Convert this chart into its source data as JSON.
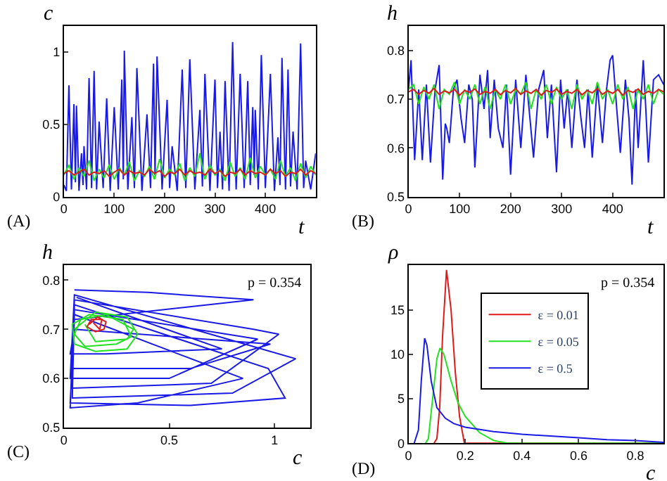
{
  "chart_data": [
    {
      "type": "line",
      "xlabel": "t",
      "ylabel": "c",
      "annotations": [
        "(A)"
      ],
      "xlim": [
        0,
        500
      ],
      "ylim": [
        0,
        1.18
      ],
      "xticks": [
        0,
        100,
        200,
        300,
        400
      ],
      "yticks": [
        0,
        0.5,
        1
      ],
      "grid": false,
      "legend": false,
      "series": [
        {
          "color": "#1a1ae6",
          "x": [
            0,
            5,
            10,
            15,
            20,
            23,
            25,
            30,
            35,
            38,
            40,
            45,
            50,
            55,
            60,
            65,
            70,
            78,
            85,
            92,
            100,
            108,
            115,
            118,
            120,
            127,
            135,
            140,
            145,
            155,
            165,
            172,
            178,
            181,
            185,
            195,
            205,
            210,
            215,
            225,
            235,
            242,
            250,
            260,
            270,
            275,
            280,
            290,
            300,
            305,
            310,
            315,
            320,
            328,
            335,
            342,
            350,
            358,
            365,
            370,
            375,
            378,
            380,
            386,
            392,
            400,
            410,
            418,
            425,
            429,
            433,
            440,
            445,
            450,
            455,
            463,
            470,
            476,
            480,
            490,
            500
          ],
          "values": [
            0.08,
            0.04,
            0.77,
            0.05,
            0.64,
            0.1,
            0.63,
            0.04,
            0.3,
            0.08,
            0.35,
            0.05,
            0.82,
            0.06,
            0.87,
            0.05,
            0.52,
            0.06,
            0.68,
            0.04,
            0.62,
            0.05,
            0.81,
            0.12,
            1.01,
            0.05,
            0.55,
            0.06,
            0.89,
            0.04,
            0.57,
            0.06,
            0.92,
            0.15,
            0.97,
            0.05,
            0.67,
            0.06,
            0.35,
            0.04,
            0.88,
            0.06,
            0.95,
            0.05,
            0.6,
            0.07,
            0.85,
            0.04,
            0.81,
            0.06,
            0.45,
            0.05,
            0.8,
            0.04,
            1.07,
            0.05,
            0.85,
            0.06,
            0.8,
            0.08,
            0.62,
            0.15,
            0.6,
            0.05,
            0.98,
            0.06,
            0.85,
            0.04,
            0.41,
            0.08,
            0.96,
            0.05,
            0.88,
            0.07,
            0.45,
            0.05,
            1.06,
            0.06,
            0.25,
            0.05,
            0.3
          ]
        },
        {
          "color": "#22e022",
          "x": [
            0,
            10,
            20,
            30,
            40,
            50,
            60,
            70,
            80,
            90,
            100,
            110,
            120,
            130,
            140,
            150,
            160,
            170,
            180,
            190,
            200,
            210,
            220,
            230,
            240,
            250,
            260,
            270,
            280,
            290,
            300,
            310,
            320,
            330,
            340,
            350,
            360,
            370,
            380,
            390,
            400,
            410,
            420,
            430,
            440,
            450,
            460,
            470,
            480,
            490,
            500
          ],
          "values": [
            0.15,
            0.22,
            0.12,
            0.2,
            0.14,
            0.25,
            0.11,
            0.19,
            0.13,
            0.22,
            0.12,
            0.2,
            0.15,
            0.24,
            0.11,
            0.18,
            0.14,
            0.21,
            0.12,
            0.26,
            0.13,
            0.19,
            0.15,
            0.23,
            0.11,
            0.2,
            0.14,
            0.3,
            0.12,
            0.22,
            0.15,
            0.19,
            0.11,
            0.24,
            0.14,
            0.2,
            0.12,
            0.27,
            0.13,
            0.21,
            0.15,
            0.19,
            0.12,
            0.25,
            0.14,
            0.2,
            0.11,
            0.23,
            0.13,
            0.21,
            0.15
          ]
        },
        {
          "color": "#e01a1a",
          "x": [
            0,
            10,
            20,
            30,
            40,
            50,
            60,
            70,
            80,
            90,
            100,
            110,
            120,
            130,
            140,
            150,
            160,
            170,
            180,
            190,
            200,
            210,
            220,
            230,
            240,
            250,
            260,
            270,
            280,
            290,
            300,
            310,
            320,
            330,
            340,
            350,
            360,
            370,
            380,
            390,
            400,
            410,
            420,
            430,
            440,
            450,
            460,
            470,
            480,
            490,
            500
          ],
          "values": [
            0.16,
            0.18,
            0.15,
            0.17,
            0.19,
            0.15,
            0.17,
            0.16,
            0.18,
            0.14,
            0.17,
            0.19,
            0.15,
            0.18,
            0.16,
            0.17,
            0.15,
            0.19,
            0.16,
            0.18,
            0.14,
            0.17,
            0.16,
            0.19,
            0.15,
            0.18,
            0.16,
            0.17,
            0.15,
            0.19,
            0.16,
            0.18,
            0.14,
            0.17,
            0.16,
            0.19,
            0.15,
            0.18,
            0.16,
            0.17,
            0.15,
            0.19,
            0.16,
            0.18,
            0.14,
            0.17,
            0.16,
            0.19,
            0.15,
            0.18,
            0.16
          ]
        }
      ]
    },
    {
      "type": "line",
      "xlabel": "t",
      "ylabel": "h",
      "annotations": [
        "(B)"
      ],
      "xlim": [
        0,
        500
      ],
      "ylim": [
        0.5,
        0.85
      ],
      "xticks": [
        0,
        100,
        200,
        300,
        400
      ],
      "yticks": [
        0.5,
        0.6,
        0.7,
        0.8
      ],
      "grid": false,
      "legend": false,
      "series": [
        {
          "color": "#1a1ae6",
          "x": [
            0,
            5,
            12,
            20,
            27,
            35,
            43,
            52,
            60,
            67,
            72,
            75,
            80,
            88,
            95,
            103,
            110,
            118,
            125,
            130,
            140,
            148,
            155,
            160,
            168,
            176,
            185,
            192,
            200,
            210,
            220,
            230,
            238,
            245,
            255,
            265,
            272,
            280,
            290,
            298,
            305,
            312,
            320,
            330,
            338,
            345,
            352,
            360,
            370,
            380,
            388,
            395,
            400,
            408,
            415,
            425,
            432,
            438,
            445,
            450,
            460,
            465,
            470,
            480,
            490,
            500
          ],
          "values": [
            0.72,
            0.78,
            0.575,
            0.72,
            0.575,
            0.73,
            0.57,
            0.72,
            0.77,
            0.535,
            0.65,
            0.64,
            0.61,
            0.72,
            0.74,
            0.66,
            0.61,
            0.73,
            0.7,
            0.56,
            0.75,
            0.68,
            0.76,
            0.62,
            0.74,
            0.64,
            0.6,
            0.73,
            0.545,
            0.74,
            0.6,
            0.75,
            0.66,
            0.58,
            0.72,
            0.76,
            0.62,
            0.73,
            0.55,
            0.74,
            0.64,
            0.72,
            0.6,
            0.74,
            0.66,
            0.6,
            0.72,
            0.58,
            0.73,
            0.61,
            0.72,
            0.78,
            0.79,
            0.68,
            0.59,
            0.74,
            0.66,
            0.525,
            0.72,
            0.6,
            0.78,
            0.68,
            0.57,
            0.74,
            0.75,
            0.73
          ]
        },
        {
          "color": "#22e022",
          "x": [
            0,
            10,
            20,
            30,
            40,
            50,
            60,
            70,
            80,
            90,
            100,
            110,
            120,
            130,
            140,
            150,
            160,
            170,
            180,
            190,
            200,
            210,
            220,
            230,
            240,
            250,
            260,
            270,
            280,
            290,
            300,
            310,
            320,
            330,
            340,
            350,
            360,
            370,
            380,
            390,
            400,
            410,
            420,
            430,
            440,
            450,
            460,
            470,
            480,
            490,
            500
          ],
          "values": [
            0.72,
            0.73,
            0.69,
            0.725,
            0.7,
            0.73,
            0.68,
            0.72,
            0.71,
            0.735,
            0.69,
            0.72,
            0.7,
            0.73,
            0.69,
            0.725,
            0.68,
            0.72,
            0.7,
            0.73,
            0.69,
            0.72,
            0.71,
            0.735,
            0.68,
            0.72,
            0.7,
            0.73,
            0.69,
            0.725,
            0.7,
            0.72,
            0.68,
            0.73,
            0.7,
            0.72,
            0.69,
            0.735,
            0.7,
            0.72,
            0.69,
            0.73,
            0.7,
            0.725,
            0.68,
            0.72,
            0.7,
            0.73,
            0.69,
            0.72,
            0.71
          ]
        },
        {
          "color": "#e01a1a",
          "x": [
            0,
            10,
            20,
            30,
            40,
            50,
            60,
            70,
            80,
            90,
            100,
            110,
            120,
            130,
            140,
            150,
            160,
            170,
            180,
            190,
            200,
            210,
            220,
            230,
            240,
            250,
            260,
            270,
            280,
            290,
            300,
            310,
            320,
            330,
            340,
            350,
            360,
            370,
            380,
            390,
            400,
            410,
            420,
            430,
            440,
            450,
            460,
            470,
            480,
            490,
            500
          ],
          "values": [
            0.715,
            0.72,
            0.71,
            0.718,
            0.712,
            0.722,
            0.71,
            0.717,
            0.713,
            0.72,
            0.708,
            0.718,
            0.714,
            0.721,
            0.71,
            0.716,
            0.712,
            0.72,
            0.709,
            0.718,
            0.713,
            0.722,
            0.71,
            0.717,
            0.712,
            0.72,
            0.708,
            0.718,
            0.714,
            0.721,
            0.71,
            0.716,
            0.712,
            0.72,
            0.709,
            0.718,
            0.713,
            0.722,
            0.71,
            0.717,
            0.712,
            0.72,
            0.708,
            0.718,
            0.714,
            0.721,
            0.71,
            0.716,
            0.712,
            0.72,
            0.715
          ]
        }
      ]
    },
    {
      "type": "line",
      "xlabel": "c",
      "ylabel": "h",
      "annotations": [
        "(C)",
        "p = 0.354"
      ],
      "xlim": [
        0,
        1.17
      ],
      "ylim": [
        0.5,
        0.83
      ],
      "xticks": [
        0,
        0.5,
        1
      ],
      "yticks": [
        0.5,
        0.6,
        0.7,
        0.8
      ],
      "grid": false,
      "legend": false,
      "series": [
        {
          "color": "#1a1ae6",
          "x": [
            0.05,
            0.4,
            0.9,
            0.05,
            0.03,
            0.6,
            1.05,
            0.97,
            0.05,
            0.04,
            0.8,
            1.1,
            0.05,
            0.03,
            0.5,
            0.92,
            0.05,
            0.04,
            0.7,
            1.02,
            0.9,
            0.05,
            0.03,
            0.35,
            0.85,
            0.05,
            0.04,
            0.6,
            0.98,
            0.05,
            0.03,
            0.2,
            0.75,
            0.06
          ],
          "values": [
            0.78,
            0.775,
            0.76,
            0.72,
            0.55,
            0.545,
            0.56,
            0.62,
            0.75,
            0.56,
            0.57,
            0.64,
            0.77,
            0.6,
            0.6,
            0.68,
            0.74,
            0.58,
            0.59,
            0.69,
            0.7,
            0.76,
            0.54,
            0.55,
            0.6,
            0.73,
            0.62,
            0.62,
            0.67,
            0.7,
            0.65,
            0.65,
            0.66,
            0.765
          ]
        },
        {
          "color": "#22e022",
          "x": [
            0.05,
            0.15,
            0.3,
            0.35,
            0.3,
            0.15,
            0.05,
            0.04,
            0.12,
            0.28,
            0.32,
            0.25,
            0.1,
            0.05,
            0.08,
            0.2,
            0.33,
            0.3,
            0.15,
            0.1
          ],
          "values": [
            0.7,
            0.735,
            0.725,
            0.69,
            0.66,
            0.655,
            0.67,
            0.71,
            0.73,
            0.72,
            0.685,
            0.67,
            0.665,
            0.69,
            0.72,
            0.73,
            0.7,
            0.68,
            0.675,
            0.71
          ]
        },
        {
          "color": "#e01a1a",
          "x": [
            0.12,
            0.16,
            0.2,
            0.19,
            0.15,
            0.11,
            0.13,
            0.18,
            0.17,
            0.14
          ],
          "values": [
            0.71,
            0.725,
            0.715,
            0.7,
            0.695,
            0.705,
            0.72,
            0.72,
            0.7,
            0.713
          ]
        }
      ]
    },
    {
      "type": "line",
      "xlabel": "c",
      "ylabel": "ρ",
      "annotations": [
        "(D)",
        "p = 0.354"
      ],
      "xlim": [
        0,
        0.9
      ],
      "ylim": [
        0,
        20
      ],
      "xticks": [
        0,
        0.2,
        0.4,
        0.6,
        0.8
      ],
      "yticks": [
        0,
        5,
        10,
        15
      ],
      "grid": false,
      "legend": "right",
      "series": [
        {
          "name": "ε = 0.01",
          "color": "#e01a1a",
          "x": [
            0.09,
            0.1,
            0.11,
            0.12,
            0.134,
            0.15,
            0.165,
            0.18,
            0.197,
            0.9
          ],
          "values": [
            0,
            0.5,
            4,
            12,
            19.5,
            15,
            8,
            3,
            0,
            0
          ]
        },
        {
          "name": "ε = 0.05",
          "color": "#22e022",
          "x": [
            0.06,
            0.07,
            0.085,
            0.1,
            0.111,
            0.125,
            0.15,
            0.175,
            0.2,
            0.25,
            0.3,
            0.35,
            0.9
          ],
          "values": [
            0,
            0.5,
            5,
            9.5,
            10.7,
            10,
            7,
            4.5,
            3,
            1.2,
            0.3,
            0,
            0
          ]
        },
        {
          "name": "ε = 0.5",
          "color": "#1a1ae6",
          "x": [
            0.02,
            0.035,
            0.045,
            0.057,
            0.065,
            0.08,
            0.1,
            0.13,
            0.16,
            0.2,
            0.3,
            0.4,
            0.5,
            0.6,
            0.7,
            0.8,
            0.9
          ],
          "values": [
            0,
            1.5,
            7,
            11.8,
            11,
            7,
            4,
            2.8,
            2.2,
            1.8,
            1.3,
            1.0,
            0.8,
            0.6,
            0.4,
            0.3,
            0.1
          ]
        }
      ]
    }
  ]
}
